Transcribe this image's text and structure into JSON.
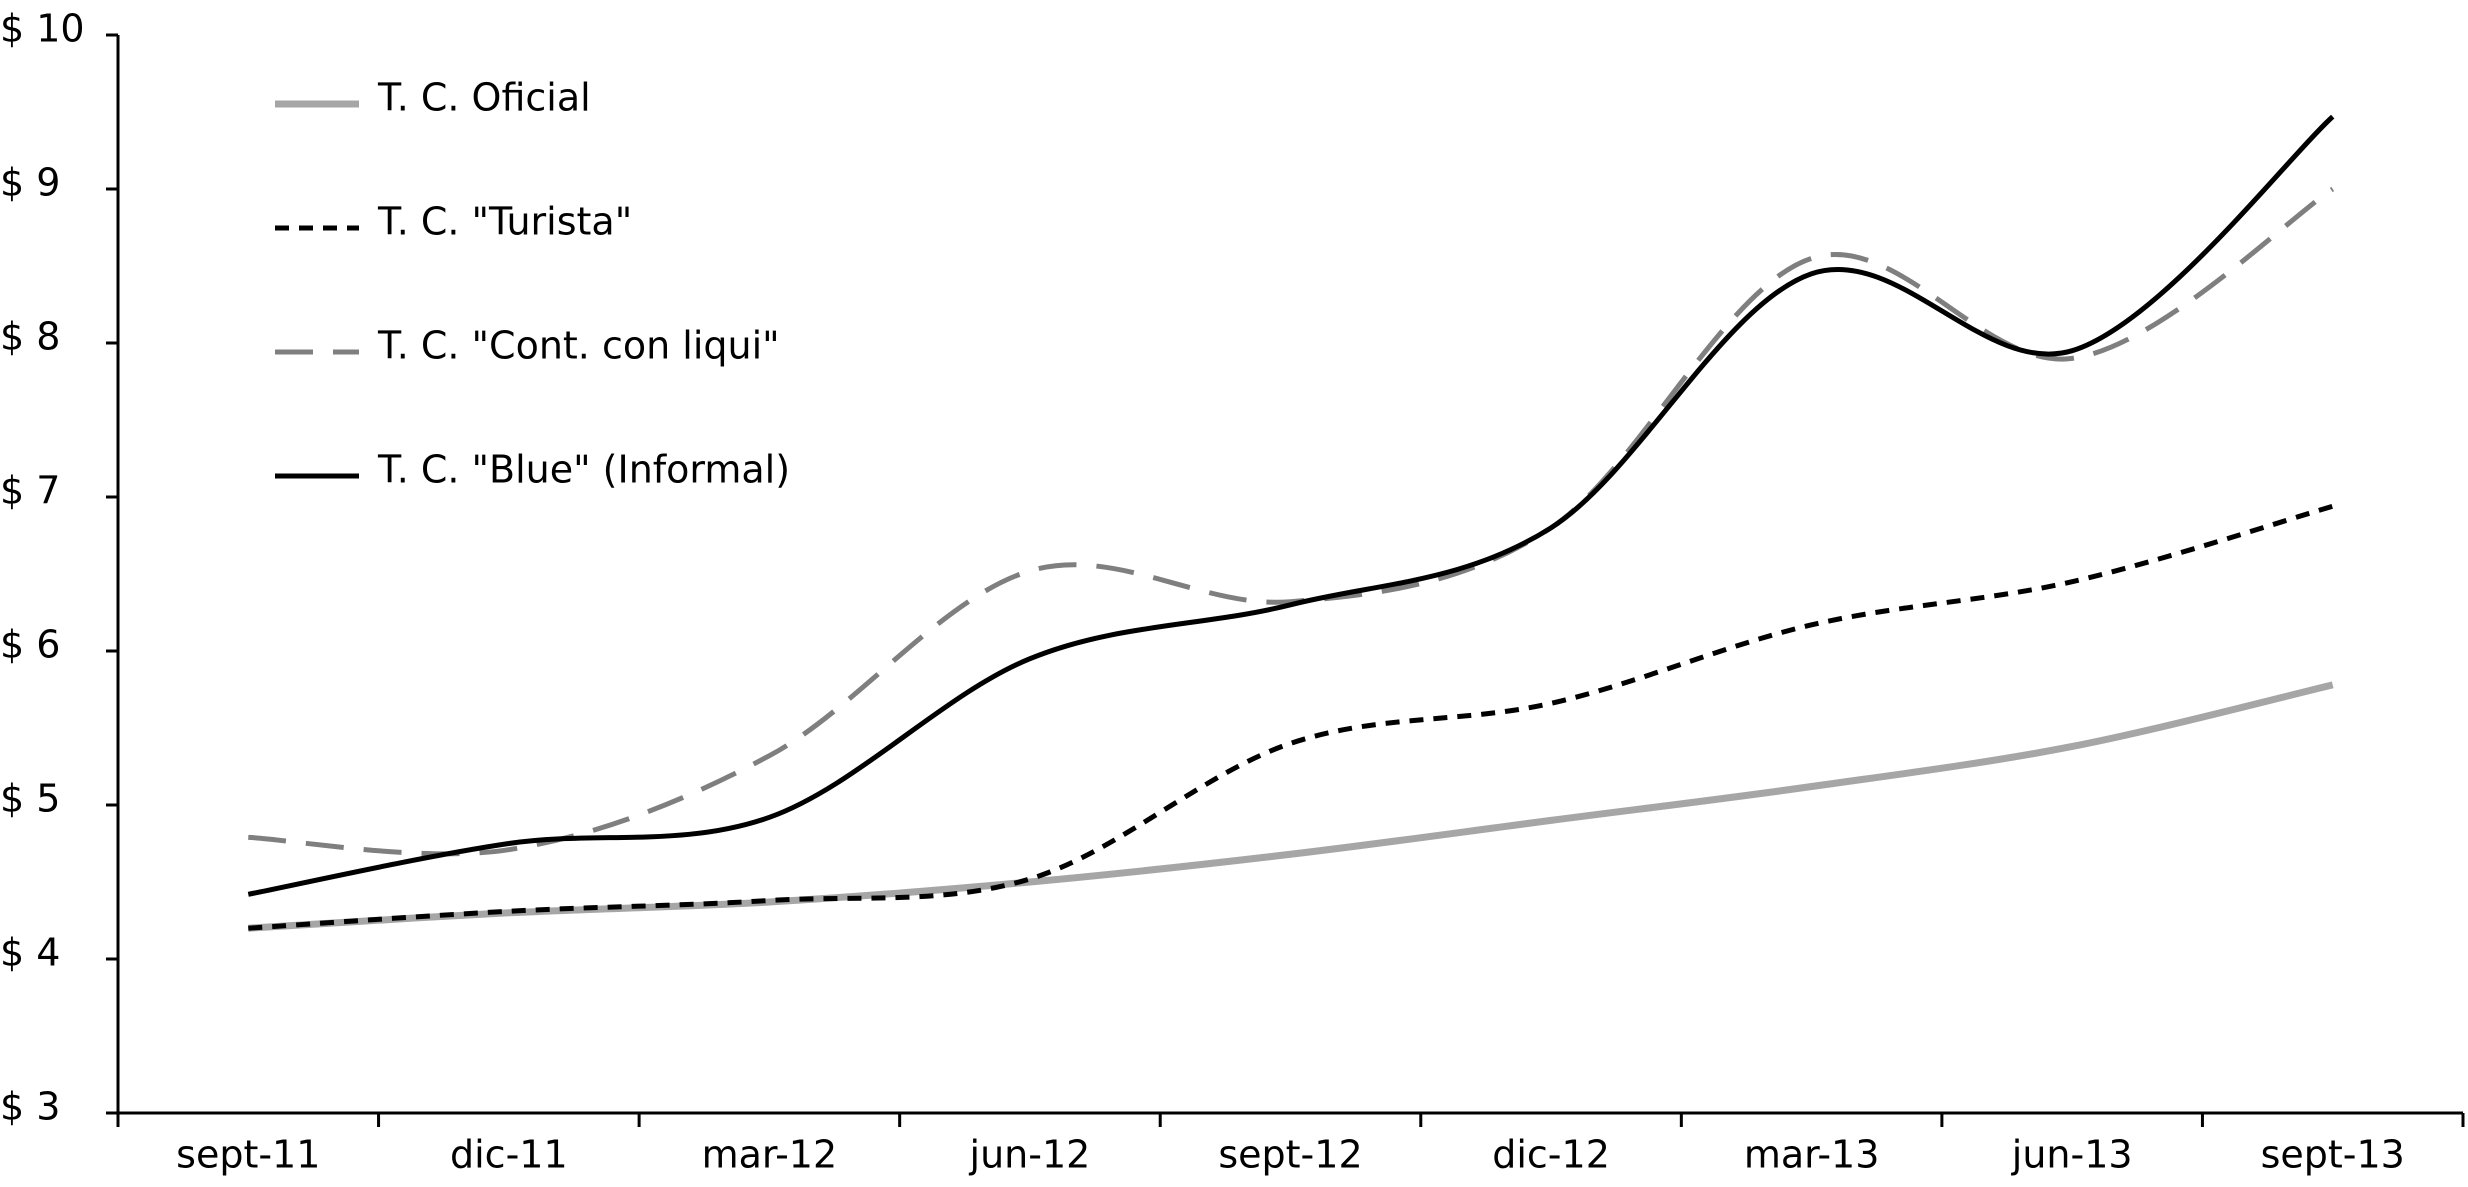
{
  "chart_data": {
    "type": "line",
    "categories": [
      "sept-11",
      "dic-11",
      "mar-12",
      "jun-12",
      "sept-12",
      "dic-12",
      "mar-13",
      "jun-13",
      "sept-13"
    ],
    "series": [
      {
        "name": "T. C. Oficial",
        "color": "#a6a6a6",
        "dash": "solid",
        "values": [
          4.2,
          4.3,
          4.37,
          4.5,
          4.68,
          4.9,
          5.12,
          5.38,
          5.78
        ]
      },
      {
        "name": "T. C. \"Turista\"",
        "color": "#000000",
        "dash": "short",
        "values": [
          4.2,
          4.31,
          4.38,
          4.52,
          5.4,
          5.66,
          6.17,
          6.45,
          6.94
        ]
      },
      {
        "name": "T. C. \"Cont. con liqui\"",
        "color": "#7f7f7f",
        "dash": "long",
        "values": [
          4.79,
          4.71,
          5.32,
          6.52,
          6.32,
          6.8,
          8.55,
          7.9,
          9.0
        ]
      },
      {
        "name": "T. C. \"Blue\" (Informal)",
        "color": "#000000",
        "dash": "solid",
        "values": [
          4.42,
          4.75,
          4.92,
          5.95,
          6.3,
          6.8,
          8.45,
          7.95,
          9.47
        ]
      }
    ],
    "ylim": [
      3,
      10
    ],
    "yticks": [
      {
        "value": 3,
        "label": "$ 3"
      },
      {
        "value": 4,
        "label": "$ 4"
      },
      {
        "value": 5,
        "label": "$ 5"
      },
      {
        "value": 6,
        "label": "$ 6"
      },
      {
        "value": 7,
        "label": "$ 7"
      },
      {
        "value": 8,
        "label": "$ 8"
      },
      {
        "value": 9,
        "label": "$ 9"
      },
      {
        "value": 10,
        "label": "$ 10"
      }
    ],
    "grid": false,
    "smooth": true
  }
}
